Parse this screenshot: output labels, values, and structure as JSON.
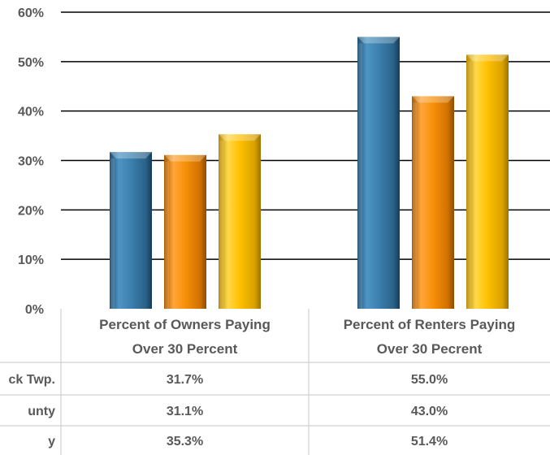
{
  "chart_data": {
    "type": "bar",
    "categories": [
      [
        "Percent of Owners Paying",
        "Over 30 Percent"
      ],
      [
        "Percent of Renters Paying",
        "Over 30 Pecrent"
      ]
    ],
    "series": [
      {
        "name": "ck Twp.",
        "values": [
          31.7,
          55.0
        ],
        "labels": [
          "31.7%",
          "55.0%"
        ],
        "color": "#3B80AE"
      },
      {
        "name": "unty",
        "values": [
          31.1,
          43.0
        ],
        "labels": [
          "31.1%",
          "43.0%"
        ],
        "color": "#F79009"
      },
      {
        "name": "y",
        "values": [
          35.3,
          51.4
        ],
        "labels": [
          "35.3%",
          "51.4%"
        ],
        "color": "#FFC000"
      }
    ],
    "yticks": [
      "0%",
      "10%",
      "20%",
      "30%",
      "40%",
      "50%",
      "60%"
    ],
    "ylim": [
      0,
      60
    ],
    "grid": true,
    "legend": "data-table-below"
  }
}
